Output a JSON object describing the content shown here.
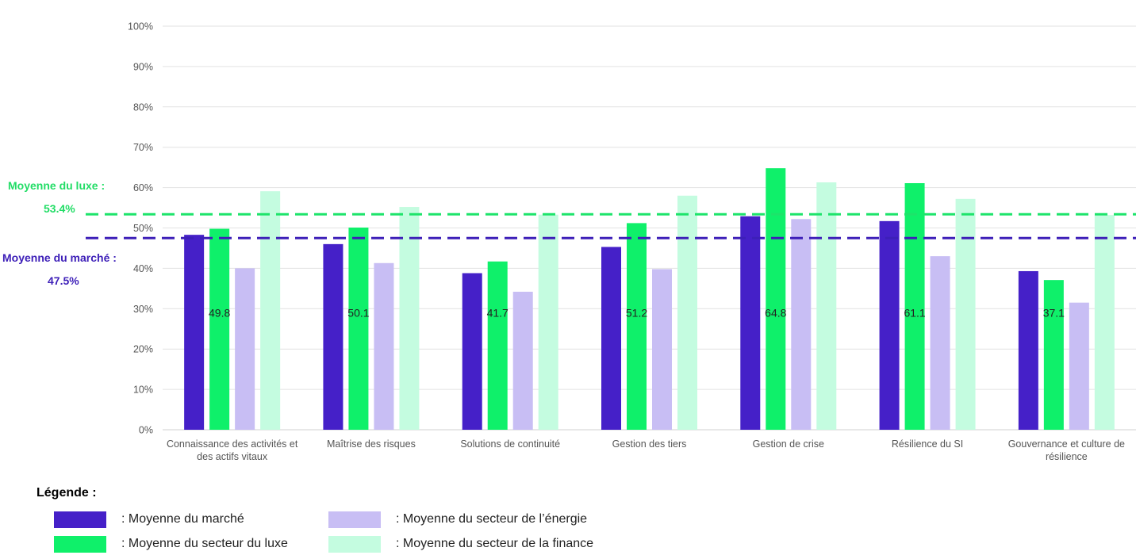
{
  "chart_data": {
    "type": "bar",
    "y_axis": {
      "min": 0,
      "max": 100,
      "step": 10,
      "unit": "%"
    },
    "categories": [
      {
        "label": "Connaissance des activités et des actifs vitaux",
        "lines": [
          "Connaissance des activités et",
          "des actifs vitaux"
        ]
      },
      {
        "label": "Maîtrise des risques",
        "lines": [
          "Maîtrise des risques"
        ]
      },
      {
        "label": "Solutions de continuité",
        "lines": [
          "Solutions de continuité"
        ]
      },
      {
        "label": "Gestion des tiers",
        "lines": [
          "Gestion des tiers"
        ]
      },
      {
        "label": "Gestion de crise",
        "lines": [
          "Gestion de crise"
        ]
      },
      {
        "label": "Résilience du SI",
        "lines": [
          "Résilience du SI"
        ]
      },
      {
        "label": "Gouvernance et culture de résilience",
        "lines": [
          "Gouvernance et culture de",
          "résilience"
        ]
      }
    ],
    "series": [
      {
        "name": "Moyenne du marché",
        "color": "#4520c8",
        "values": [
          48.3,
          46.0,
          38.8,
          45.3,
          52.9,
          51.7,
          39.3
        ]
      },
      {
        "name": "Moyenne du secteur du luxe",
        "color": "#0ff06a",
        "values": [
          49.8,
          50.1,
          41.7,
          51.2,
          64.8,
          61.1,
          37.1
        ]
      },
      {
        "name": "Moyenne du secteur de l’énergie",
        "color": "#c8bef4",
        "values": [
          40.0,
          41.3,
          34.2,
          39.8,
          52.2,
          43.0,
          31.5
        ]
      },
      {
        "name": "Moyenne du secteur de la finance",
        "color": "#c4fce0",
        "values": [
          59.1,
          55.2,
          53.3,
          58.0,
          61.3,
          57.2,
          53.2
        ]
      }
    ],
    "data_labels": {
      "series": "Moyenne du secteur du luxe",
      "values": [
        "49.8",
        "50.1",
        "41.7",
        "51.2",
        "64.8",
        "61.1",
        "37.1"
      ]
    },
    "reference_lines": [
      {
        "name": "Moyenne du luxe",
        "value": 53.4,
        "color": "#1de46a",
        "label": "Moyenne du luxe :",
        "value_label": "53.4%"
      },
      {
        "name": "Moyenne du marché",
        "value": 47.5,
        "color": "#3d1fb8",
        "label": "Moyenne du marché :",
        "value_label": "47.5%"
      }
    ],
    "grid": true
  },
  "legend": {
    "title": "Légende :",
    "items": [
      {
        "label": ": Moyenne du marché",
        "color": "#4520c8"
      },
      {
        "label": ": Moyenne du secteur de l’énergie",
        "color": "#c8bef4"
      },
      {
        "label": ": Moyenne du secteur du luxe",
        "color": "#0ff06a"
      },
      {
        "label": ": Moyenne du secteur de la finance",
        "color": "#c4fce0"
      }
    ]
  },
  "averages": {
    "luxe": {
      "label": "Moyenne du luxe :",
      "value": "53.4%",
      "color": "#22dd66"
    },
    "marche": {
      "label": "Moyenne du marché :",
      "value": "47.5%",
      "color": "#3d1fb8"
    }
  }
}
